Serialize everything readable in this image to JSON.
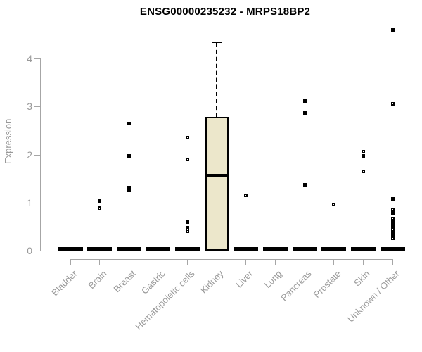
{
  "chart_data": {
    "type": "boxplot",
    "title": "ENSG00000235232 - MRPS18BP2",
    "ylabel": "Expression",
    "xlabel": "",
    "ylim": [
      0,
      4.7
    ],
    "yticks": [
      0,
      1,
      2,
      3,
      4
    ],
    "grid": false,
    "legend": "none",
    "categories": [
      "Bladder",
      "Brain",
      "Breast",
      "Gastric",
      "Hematopoietic cells",
      "Kidney",
      "Liver",
      "Lung",
      "Pancreas",
      "Prostate",
      "Skin",
      "Unknown / Other"
    ],
    "series": [
      {
        "category": "Bladder",
        "q1": 0,
        "median": 0,
        "q3": 0,
        "whisker_low": 0,
        "whisker_high": 0,
        "outliers": []
      },
      {
        "category": "Brain",
        "q1": 0,
        "median": 0,
        "q3": 0,
        "whisker_low": 0,
        "whisker_high": 0,
        "outliers": [
          1.04,
          0.9,
          0.87
        ]
      },
      {
        "category": "Breast",
        "q1": 0,
        "median": 0,
        "q3": 0,
        "whisker_low": 0,
        "whisker_high": 0,
        "outliers": [
          2.65,
          1.97,
          1.31,
          1.26
        ]
      },
      {
        "category": "Gastric",
        "q1": 0,
        "median": 0,
        "q3": 0,
        "whisker_low": 0,
        "whisker_high": 0,
        "outliers": []
      },
      {
        "category": "Hematopoietic cells",
        "q1": 0,
        "median": 0,
        "q3": 0,
        "whisker_low": 0,
        "whisker_high": 0,
        "outliers": [
          2.35,
          1.9,
          0.59,
          0.48,
          0.44,
          0.4
        ]
      },
      {
        "category": "Kidney",
        "q1": 0,
        "median": 1.57,
        "q3": 2.78,
        "whisker_low": 0,
        "whisker_high": 4.34,
        "outliers": []
      },
      {
        "category": "Liver",
        "q1": 0,
        "median": 0,
        "q3": 0,
        "whisker_low": 0,
        "whisker_high": 0,
        "outliers": [
          1.15
        ]
      },
      {
        "category": "Lung",
        "q1": 0,
        "median": 0,
        "q3": 0,
        "whisker_low": 0,
        "whisker_high": 0,
        "outliers": []
      },
      {
        "category": "Pancreas",
        "q1": 0,
        "median": 0,
        "q3": 0,
        "whisker_low": 0,
        "whisker_high": 0,
        "outliers": [
          3.12,
          2.87,
          1.37
        ]
      },
      {
        "category": "Prostate",
        "q1": 0,
        "median": 0,
        "q3": 0,
        "whisker_low": 0,
        "whisker_high": 0,
        "outliers": [
          0.96
        ]
      },
      {
        "category": "Skin",
        "q1": 0,
        "median": 0,
        "q3": 0,
        "whisker_low": 0,
        "whisker_high": 0,
        "outliers": [
          2.06,
          1.97,
          1.65
        ]
      },
      {
        "category": "Unknown / Other",
        "q1": 0,
        "median": 0,
        "q3": 0,
        "whisker_low": 0,
        "whisker_high": 0,
        "outliers": [
          4.6,
          3.06,
          1.07,
          0.85,
          0.78,
          0.66,
          0.6,
          0.53,
          0.5,
          0.47,
          0.44,
          0.41,
          0.38,
          0.35,
          0.32,
          0.29,
          0.26
        ]
      }
    ],
    "colors": {
      "box_fill": "#ece7cb",
      "box_border": "#000000",
      "median": "#000000",
      "point": "#000000",
      "axis": "#a6a6a6",
      "label_text": "#999999",
      "title_text": "#000000",
      "background": "#ffffff"
    }
  }
}
